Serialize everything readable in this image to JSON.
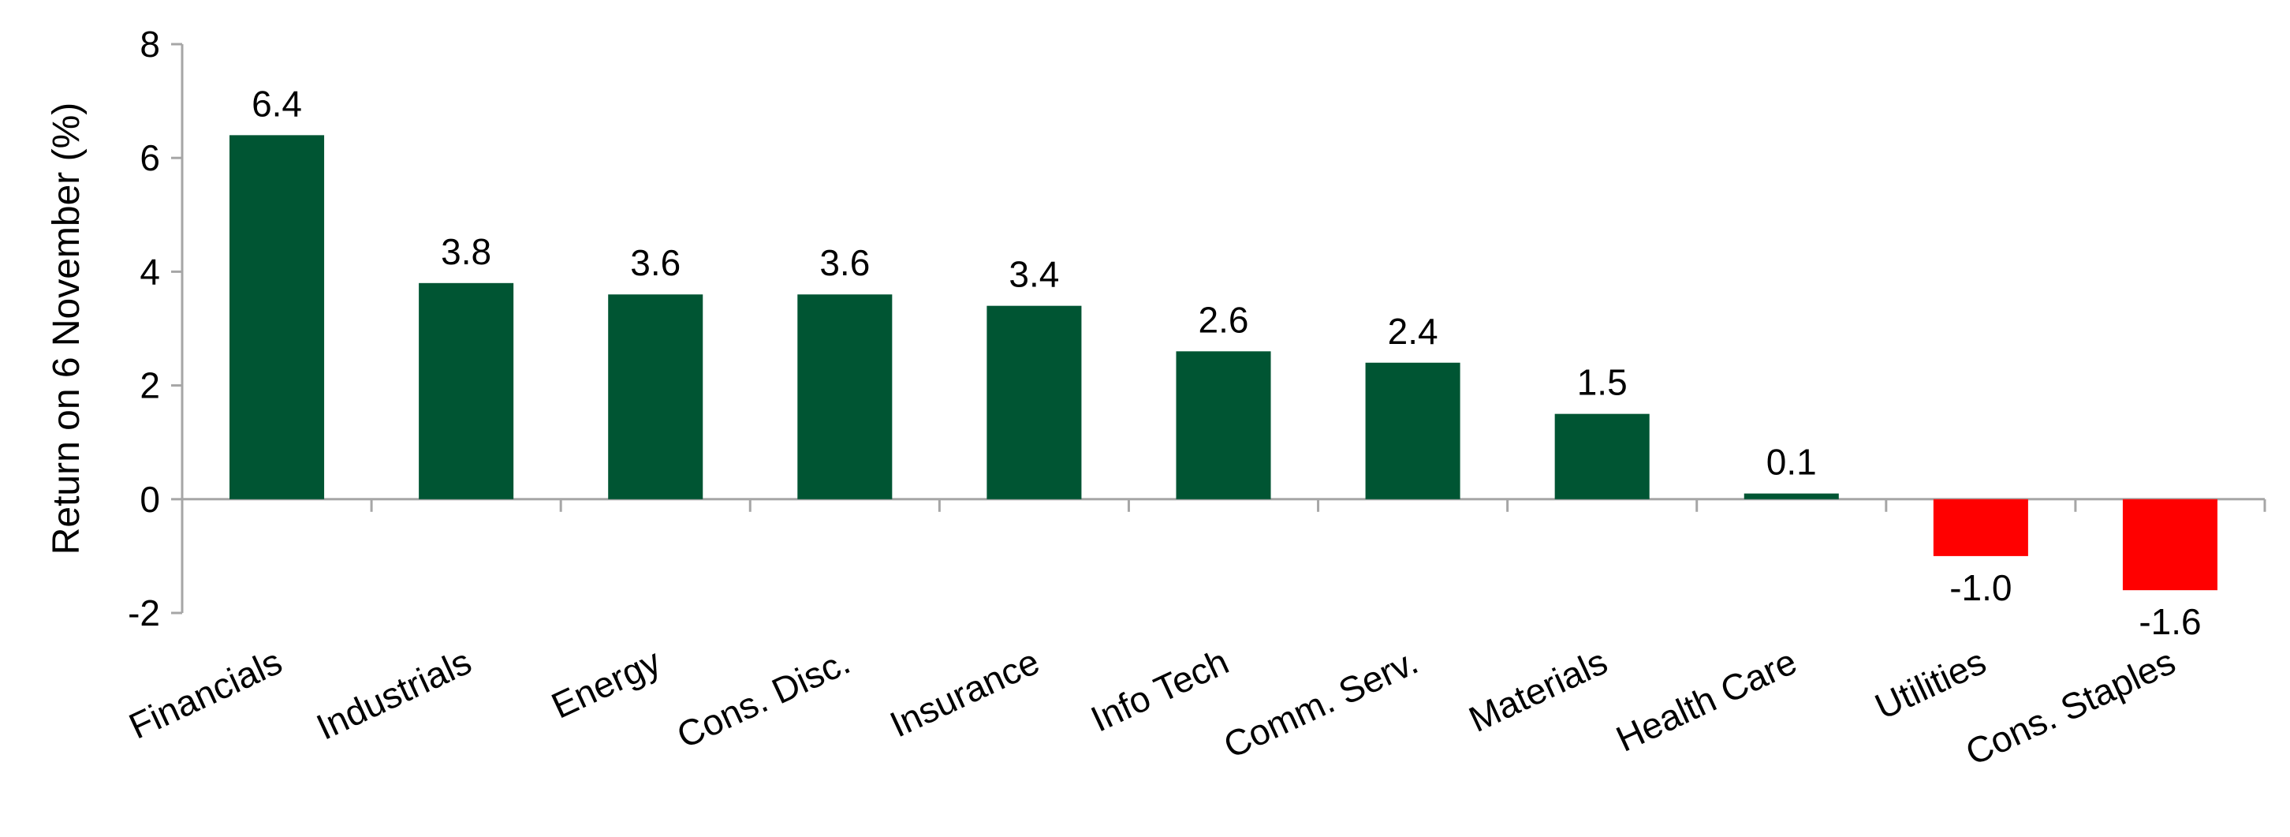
{
  "chart_data": {
    "type": "bar",
    "title": "",
    "xlabel": "",
    "ylabel": "Return on 6 November (%)",
    "ylim": [
      -2,
      8
    ],
    "yticks": [
      -2,
      0,
      2,
      4,
      6,
      8
    ],
    "categories": [
      "Financials",
      "Industrials",
      "Energy",
      "Cons. Disc.",
      "Insurance",
      "Info Tech",
      "Comm. Serv.",
      "Materials",
      "Health Care",
      "Utilities",
      "Cons. Staples"
    ],
    "values": [
      6.4,
      3.8,
      3.6,
      3.6,
      3.4,
      2.6,
      2.4,
      1.5,
      0.1,
      -1.0,
      -1.6
    ],
    "data_labels": [
      "6.4",
      "3.8",
      "3.6",
      "3.6",
      "3.4",
      "2.6",
      "2.4",
      "1.5",
      "0.1",
      "-1.0",
      "-1.6"
    ],
    "grid": false,
    "legend": "none",
    "colors": {
      "positive": "#005533",
      "negative": "#ff0000",
      "axis": "#a6a6a6"
    }
  }
}
